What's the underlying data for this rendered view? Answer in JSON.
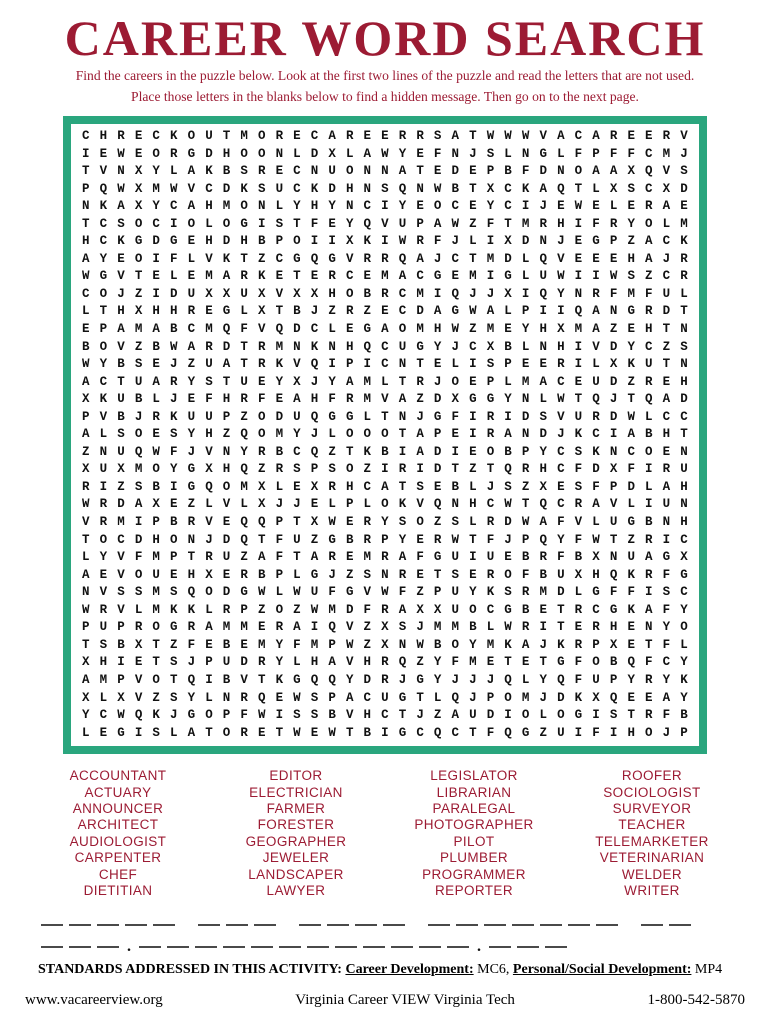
{
  "page": {
    "title": "CAREER WORD SEARCH",
    "instructions_line1": "Find the careers in the puzzle below. Look at the first two lines of the puzzle and read the letters that are not used.",
    "instructions_line2": "Place those letters in the blanks below to find a hidden message. Then go on to the next page."
  },
  "puzzle_grid": {
    "rows": [
      "CHRECKOUTMORECAREERRSATWWWVACAREERV",
      "IEWEORGDHOONLDXLAWYEFNJSLNGLFPFFCMJ",
      "TVNXYLAKBSRECNUONNATEDEPBFDNOAAXQVS",
      "PQWXMWVCDKSUCKDHNSQNWBTXCKAQTLXSCXD",
      "NKAXYCAHMONLYHYNCIYEOCEYCIJEWELERAE",
      "TCSOCIOLOGISTFEYQVUPAWZFTMRHIFRYOLM",
      "HCKGDGEHDHBPOIIXKIWRFJLIXDNJEGPZACK",
      "AYEOIFLVKTZCGQGVRRQAJCTMDLQVEEEHAJR",
      "WGVTELEMARKETERCEMACGEMIGLUWIIWSZCR",
      "COJZIDUXXUXVXXHOBRCMIQJJXIQYNRFMFUL",
      "LTHXHHREGLXTBJZRZECDAGWALPIIQANGRDT",
      "EPAMABCMQFVQDCLEGAOMHWZMEYHXMAZEHTN",
      "BOVZBWARDTRMNKNHQCUGYJCXBLNHIVDYCZS",
      "WYBSEJZUATRKVQIPICNTELISPEERILXKUTN",
      "ACTUARYSTUEYXJYAMLTRJOEPLMACEUDZREH",
      "XKUBLJEFHRFEAHFRMVAZDXGGYNLWTQJTQAD",
      "PVBJRKUUPZODUQGGLTNJGFIRIDSVURDWLCC",
      "ALSOESYHZQOMYJLOOOTAPEIRANDJKCIABHT",
      "ZNUQWFJVNYRBCQZTKBIADIEOBPYCSKNCOEN",
      "XUXMOYGXHQZRSPSOZIRIDTZTQRHCFDXFIRU",
      "RIZSBIGQOMXLEXRHCATSEBLJSZXESFPDLAH",
      "WRDAXEZLVLXJJELPLOKVQNHCWTQCRAVLIUN",
      "VRMIPBRVEQQPTXWERYSOZSLRDWAFVLUGBNH",
      "TOCDHONJDQTFUZGBRPYERWTFJPQYFWTZRIC",
      "LYVFMPTRUZAFTAREMRAFGUIUEBRFBXNUAGX",
      "AEVOUEHXERBPLGJZSNRETSEROFBUXHQKRFG",
      "NVSSMSQODGWLWUFGVWFZPUYKSRMDLGFFISC",
      "WRVLMKKLRPZOZWMDFRAXXUOCGBETRCGKAFY",
      "PUPROGRAMMERAIQVZXSJMMBLWRITERHENYO",
      "TSBXTZFEBEMYFMPWZXNWBOYMKAJKRPXETFL",
      "XHIETSJPUDRYLHAVHRQZYFMETETGFOBQFCY",
      "AMPVOTQIBVTKGQQYDRJGYJJJQLYQFUPYRYK",
      "XLXVZSYLNRQEWSPACUGTLQJPOMJDKXQEEAY",
      "YCWQKJGOPFWISSBVHCTJZAUDIOLOGISTRFB",
      "LEGISLATORETWEWTBIGCQCTFQGZUIFIHOJP"
    ]
  },
  "word_list": {
    "columns": [
      [
        "ACCOUNTANT",
        "ACTUARY",
        "ANNOUNCER",
        "ARCHITECT",
        "AUDIOLOGIST",
        "CARPENTER",
        "CHEF",
        "DIETITIAN"
      ],
      [
        "EDITOR",
        "ELECTRICIAN",
        "FARMER",
        "FORESTER",
        "GEOGRAPHER",
        "JEWELER",
        "LANDSCAPER",
        "LAWYER"
      ],
      [
        "LEGISLATOR",
        "LIBRARIAN",
        "PARALEGAL",
        "PHOTOGRAPHER",
        "PILOT",
        "PLUMBER",
        "PROGRAMMER",
        "REPORTER"
      ],
      [
        "ROOFER",
        "SOCIOLOGIST",
        "SURVEYOR",
        "TEACHER",
        "TELEMARKETER",
        "VETERINARIAN",
        "WELDER",
        "WRITER"
      ]
    ]
  },
  "answer_blanks": {
    "line1_groups": [
      5,
      3,
      4,
      7,
      2
    ],
    "line2_groups": [
      3,
      12,
      3
    ],
    "separator": "."
  },
  "standards": {
    "prefix": "STANDARDS ADDRESSED IN THIS ACTIVITY:",
    "career_label": "Career Development:",
    "career_value": "MC6,",
    "personal_label": "Personal/Social Development:",
    "personal_value": "MP4"
  },
  "footer": {
    "website": "www.vacareerview.org",
    "organization": "Virginia Career VIEW Virginia Tech",
    "phone": "1-800-542-5870"
  },
  "colors": {
    "maroon": "#9C1B33",
    "green": "#2AA67E"
  }
}
